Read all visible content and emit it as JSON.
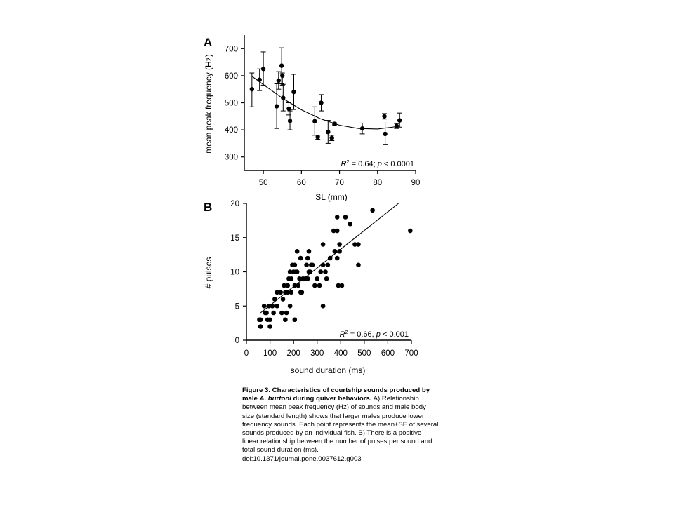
{
  "chart_data": [
    {
      "panel_label": "A",
      "type": "scatter",
      "xlabel": "SL (mm)",
      "ylabel": "mean peak frequency (Hz)",
      "xlim": [
        45,
        90
      ],
      "ylim": [
        250,
        750
      ],
      "x_ticks": [
        50,
        60,
        70,
        80,
        90
      ],
      "y_ticks": [
        300,
        400,
        500,
        600,
        700
      ],
      "grid": false,
      "stat_r2": "0.64",
      "stat_p": "< 0.0001",
      "points": [
        {
          "x": 47,
          "y": 550,
          "lo": 485,
          "hi": 610
        },
        {
          "x": 49,
          "y": 585,
          "lo": 545,
          "hi": 625
        },
        {
          "x": 50,
          "y": 625,
          "lo": 565,
          "hi": 688
        },
        {
          "x": 53.5,
          "y": 487,
          "lo": 405,
          "hi": 570
        },
        {
          "x": 54,
          "y": 582,
          "lo": 550,
          "hi": 615
        },
        {
          "x": 54.8,
          "y": 637,
          "lo": 570,
          "hi": 703
        },
        {
          "x": 55,
          "y": 600,
          "lo": 565,
          "hi": 610
        },
        {
          "x": 55.2,
          "y": 518,
          "lo": 470,
          "hi": 568
        },
        {
          "x": 56.7,
          "y": 478,
          "lo": 455,
          "hi": 500
        },
        {
          "x": 57,
          "y": 433,
          "lo": 400,
          "hi": 470
        },
        {
          "x": 58,
          "y": 540,
          "lo": 475,
          "hi": 605
        },
        {
          "x": 63.5,
          "y": 432,
          "lo": 380,
          "hi": 485
        },
        {
          "x": 64.3,
          "y": 373,
          "lo": 365,
          "hi": 380
        },
        {
          "x": 65.2,
          "y": 500,
          "lo": 470,
          "hi": 530
        },
        {
          "x": 67,
          "y": 392,
          "lo": 350,
          "hi": 435
        },
        {
          "x": 68,
          "y": 370,
          "lo": 360,
          "hi": 380
        },
        {
          "x": 68.7,
          "y": 422,
          "lo": 418,
          "hi": 426
        },
        {
          "x": 76,
          "y": 405,
          "lo": 385,
          "hi": 425
        },
        {
          "x": 81.8,
          "y": 450,
          "lo": 440,
          "hi": 460
        },
        {
          "x": 82,
          "y": 385,
          "lo": 345,
          "hi": 425
        },
        {
          "x": 85,
          "y": 414,
          "lo": 405,
          "hi": 423
        },
        {
          "x": 85.8,
          "y": 435,
          "lo": 410,
          "hi": 462
        }
      ],
      "fit_type": "quadratic",
      "fit_curve": {
        "x": [
          47,
          50,
          55,
          60,
          65,
          70,
          75,
          80,
          85,
          86
        ],
        "y": [
          598,
          567,
          517,
          474,
          441,
          417,
          405,
          403,
          412,
          415
        ]
      }
    },
    {
      "panel_label": "B",
      "type": "scatter",
      "xlabel": "sound duration (ms)",
      "ylabel": "# pulses",
      "xlim": [
        0,
        700
      ],
      "ylim": [
        0,
        20
      ],
      "x_ticks": [
        0,
        100,
        200,
        300,
        400,
        500,
        600,
        700
      ],
      "y_ticks": [
        0,
        5,
        10,
        15,
        20
      ],
      "grid": false,
      "stat_r2": "0.66",
      "stat_p": "< 0.001",
      "points": [
        [
          55,
          3
        ],
        [
          60,
          3
        ],
        [
          60,
          2
        ],
        [
          75,
          5
        ],
        [
          80,
          4
        ],
        [
          85,
          4
        ],
        [
          90,
          3
        ],
        [
          95,
          5
        ],
        [
          100,
          3
        ],
        [
          100,
          2
        ],
        [
          110,
          5
        ],
        [
          115,
          4
        ],
        [
          120,
          6
        ],
        [
          130,
          5
        ],
        [
          130,
          7
        ],
        [
          145,
          7
        ],
        [
          150,
          4
        ],
        [
          155,
          6
        ],
        [
          160,
          8
        ],
        [
          165,
          7
        ],
        [
          165,
          3
        ],
        [
          170,
          4
        ],
        [
          175,
          7
        ],
        [
          175,
          8
        ],
        [
          180,
          9
        ],
        [
          185,
          5
        ],
        [
          185,
          10
        ],
        [
          190,
          9
        ],
        [
          190,
          7
        ],
        [
          195,
          11
        ],
        [
          200,
          10
        ],
        [
          205,
          8
        ],
        [
          205,
          11
        ],
        [
          205,
          3
        ],
        [
          210,
          10
        ],
        [
          215,
          10
        ],
        [
          215,
          13
        ],
        [
          220,
          8
        ],
        [
          225,
          9
        ],
        [
          230,
          7
        ],
        [
          230,
          12
        ],
        [
          235,
          7
        ],
        [
          240,
          9
        ],
        [
          250,
          9
        ],
        [
          255,
          11
        ],
        [
          260,
          9
        ],
        [
          260,
          12
        ],
        [
          265,
          13
        ],
        [
          265,
          10
        ],
        [
          270,
          10
        ],
        [
          275,
          11
        ],
        [
          280,
          11
        ],
        [
          290,
          8
        ],
        [
          300,
          9
        ],
        [
          310,
          8
        ],
        [
          315,
          10
        ],
        [
          325,
          14
        ],
        [
          325,
          5
        ],
        [
          325,
          11
        ],
        [
          335,
          10
        ],
        [
          340,
          9
        ],
        [
          345,
          11
        ],
        [
          355,
          12
        ],
        [
          370,
          16
        ],
        [
          375,
          13
        ],
        [
          385,
          16
        ],
        [
          385,
          12
        ],
        [
          385,
          18
        ],
        [
          390,
          8
        ],
        [
          395,
          14
        ],
        [
          395,
          13
        ],
        [
          405,
          8
        ],
        [
          420,
          18
        ],
        [
          440,
          17
        ],
        [
          460,
          14
        ],
        [
          475,
          14
        ],
        [
          475,
          11
        ],
        [
          535,
          19
        ],
        [
          695,
          16
        ]
      ],
      "fit_type": "linear",
      "fit_line": {
        "x": [
          60,
          645
        ],
        "y": [
          4,
          20
        ]
      }
    }
  ],
  "caption": {
    "title": "Figure 3. Characteristics of courtship sounds produced by male",
    "species": "A. burtoni",
    "title_end": "during quiver behaviors.",
    "body": "A) Relationship between mean peak frequency (Hz) of sounds and male body size (standard length) shows that larger males produce lower frequency sounds. Each point represents the mean±SE of several sounds produced by an individual fish. B) There is a positive linear relationship between the number of pulses per sound and total sound duration (ms).",
    "doi": "doi:10.1371/journal.pone.0037612.g003"
  }
}
